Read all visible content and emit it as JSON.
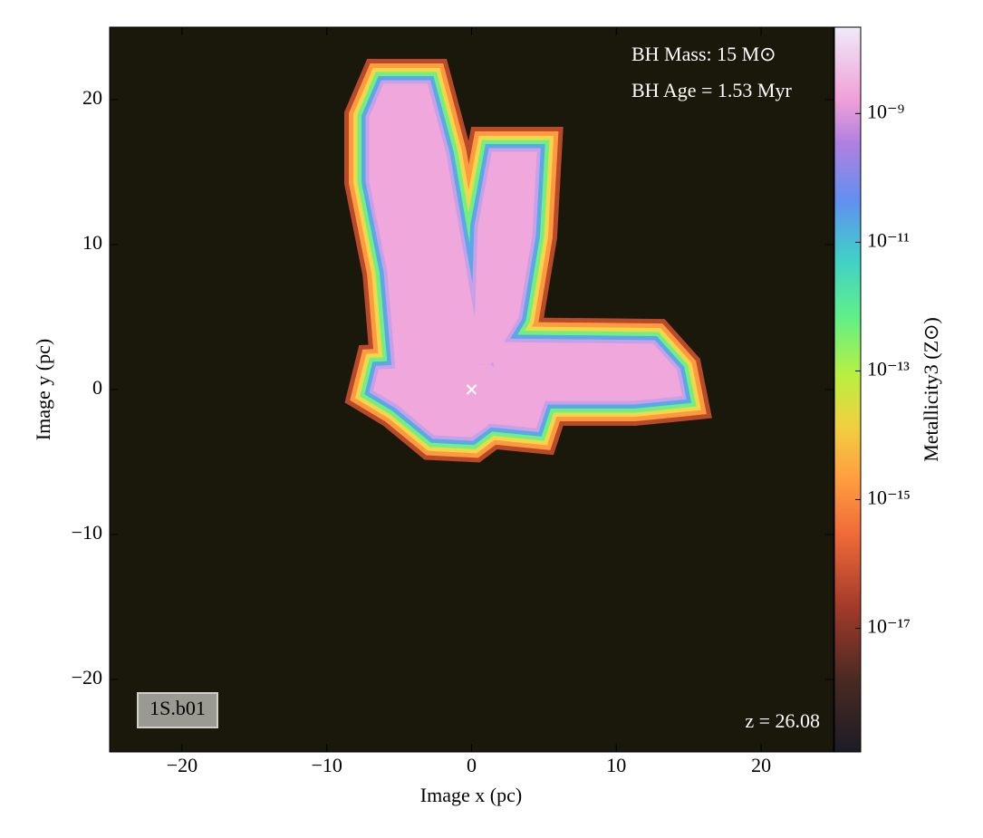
{
  "chart_data": {
    "type": "image",
    "annotations": {
      "bh_mass": "BH Mass: 15 M⊙",
      "bh_age": "BH Age = 1.53 Myr",
      "redshift": "z = 26.08",
      "label": "1S.b01"
    },
    "xlabel": "Image x  (pc)",
    "ylabel": "Image y  (pc)",
    "xlim": [
      -25,
      25
    ],
    "ylim": [
      -25,
      25
    ],
    "xticks": [
      {
        "value": -20,
        "label": "−20"
      },
      {
        "value": -10,
        "label": "−10"
      },
      0,
      10,
      20
    ],
    "yticks": [
      {
        "value": -20,
        "label": "−20"
      },
      {
        "value": -10,
        "label": "−10"
      },
      0,
      10,
      20
    ],
    "marker": {
      "x": 0,
      "y": 0,
      "color": "#ffffff"
    },
    "colorbar": {
      "label": "Metallicity3  (Z⊙)",
      "log": true,
      "clim": [
        1.2e-19,
        2.2e-08
      ],
      "ticks": [
        {
          "value": 1e-09,
          "label": "10⁻⁹"
        },
        {
          "value": 1e-11,
          "label": "10⁻¹¹"
        },
        {
          "value": 1e-13,
          "label": "10⁻¹³"
        },
        {
          "value": 1e-15,
          "label": "10⁻¹⁵"
        },
        {
          "value": 1e-17,
          "label": "10⁻¹⁷"
        }
      ]
    }
  }
}
